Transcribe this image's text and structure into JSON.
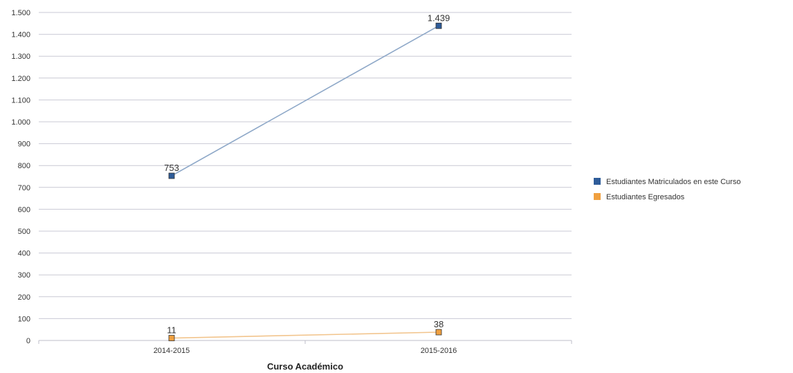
{
  "chart_data": {
    "type": "line",
    "title": "",
    "xlabel": "Curso Académico",
    "ylabel": "",
    "categories": [
      "2014-2015",
      "2015-2016"
    ],
    "ylim": [
      0,
      1500
    ],
    "yticks": [
      0,
      100,
      200,
      300,
      400,
      500,
      600,
      700,
      800,
      900,
      1000,
      1100,
      1200,
      1300,
      1400,
      1500
    ],
    "ytick_labels": [
      "0",
      "100",
      "200",
      "300",
      "400",
      "500",
      "600",
      "700",
      "800",
      "900",
      "1.000",
      "1.100",
      "1.200",
      "1.300",
      "1.400",
      "1.500"
    ],
    "grid": true,
    "legend_position": "right",
    "series": [
      {
        "name": "Estudiantes Matriculados en este Curso",
        "values": [
          753,
          1439
        ],
        "value_labels": [
          "753",
          "1.439"
        ],
        "marker_color": "#2e5c99",
        "line_color": "#8ea8c8"
      },
      {
        "name": "Estudiantes Egresados",
        "values": [
          11,
          38
        ],
        "value_labels": [
          "11",
          "38"
        ],
        "marker_color": "#f0a040",
        "line_color": "#f2c48c"
      }
    ]
  }
}
